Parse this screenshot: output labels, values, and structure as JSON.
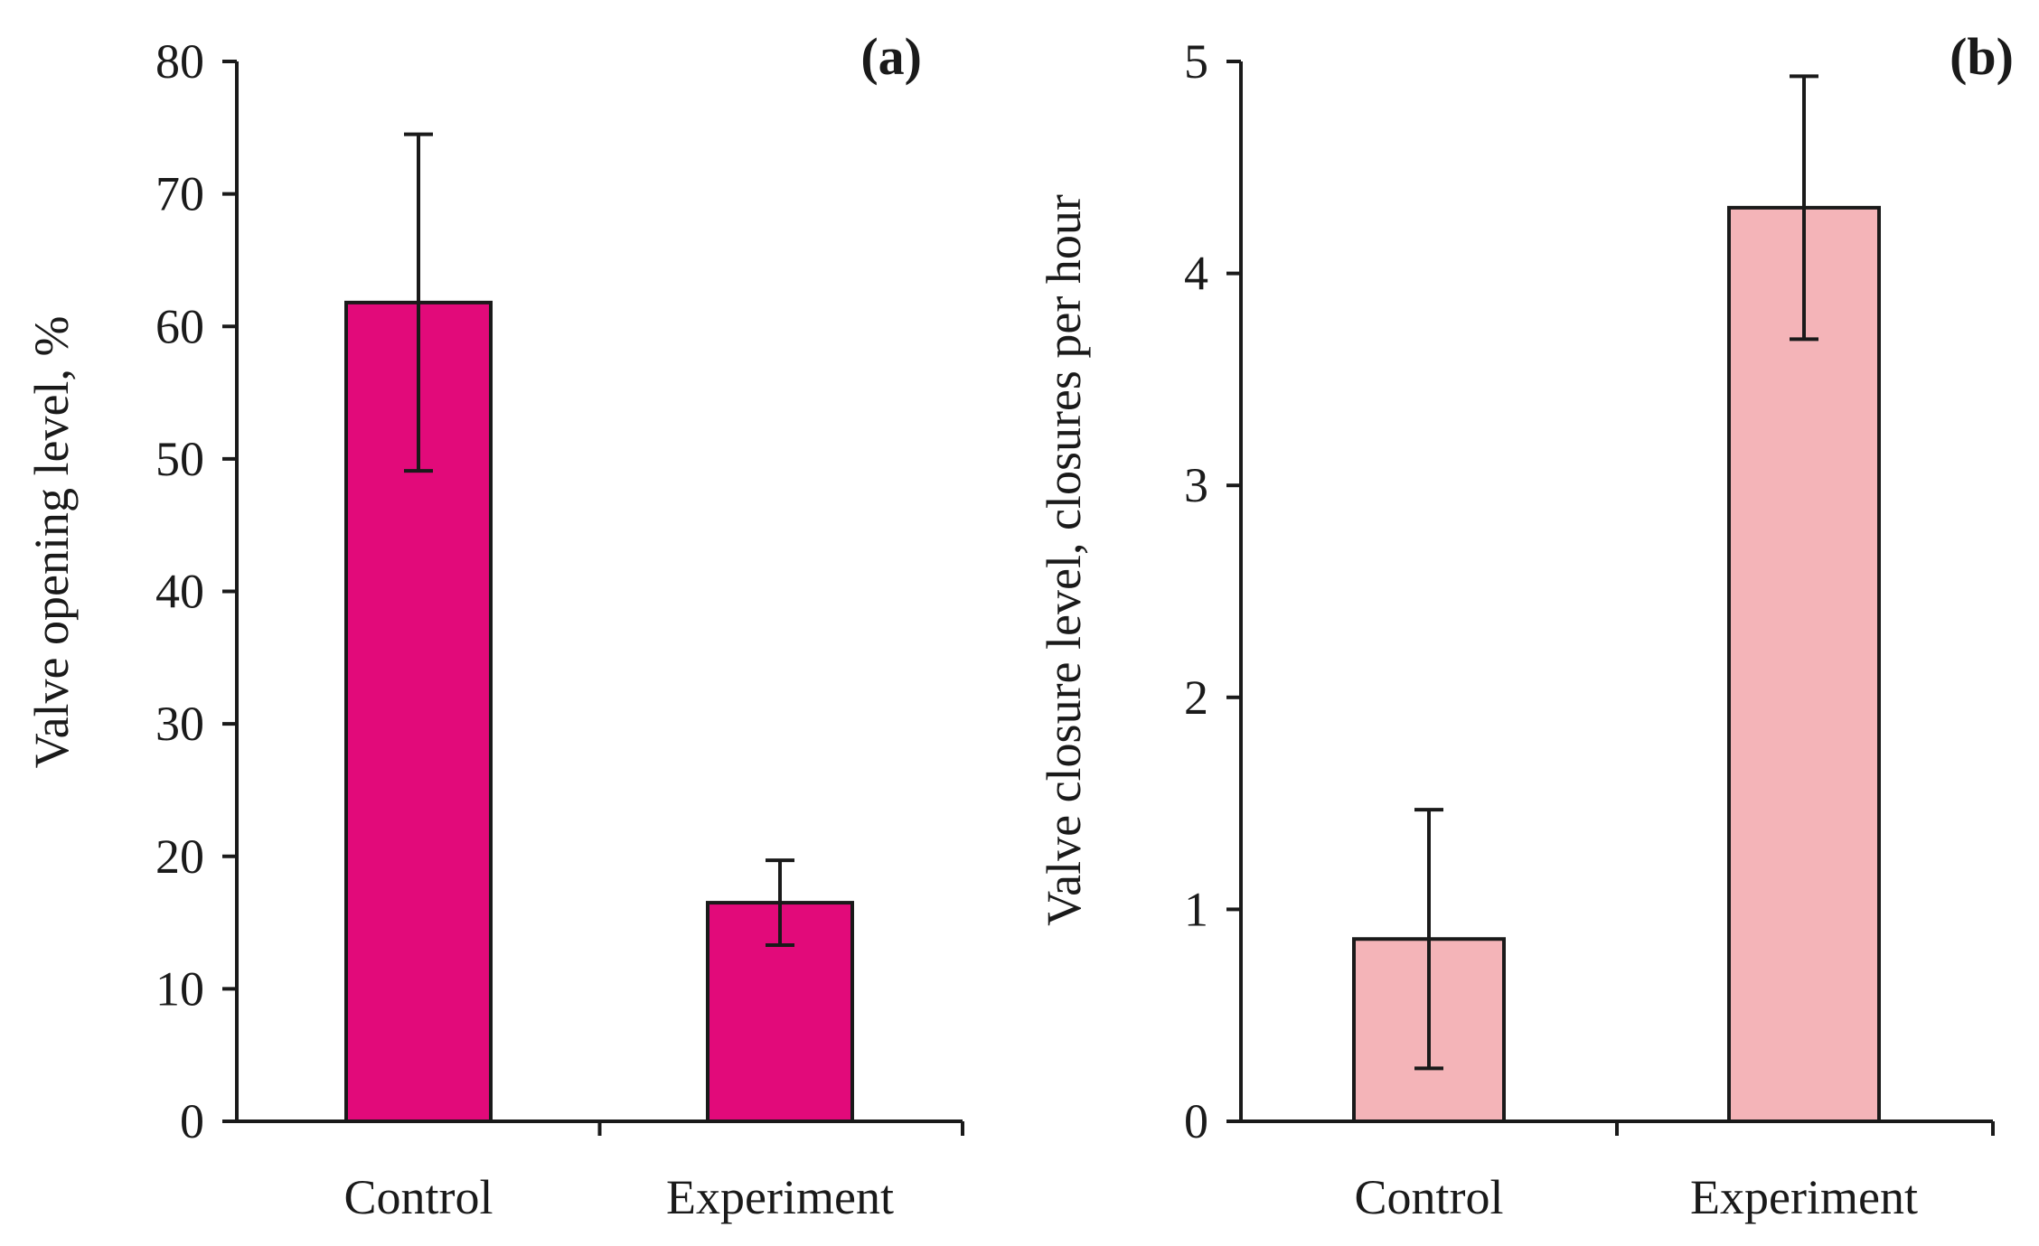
{
  "chart_data": [
    {
      "type": "bar",
      "panel_label": "(a)",
      "categories": [
        "Control",
        "Experiment"
      ],
      "values": [
        61.8,
        16.5
      ],
      "errors": [
        12.7,
        3.2
      ],
      "ylabel": "Valve opening level, %",
      "xlabel": "",
      "ylim": [
        0,
        80
      ],
      "yticks": [
        "0",
        "10",
        "20",
        "30",
        "40",
        "50",
        "60",
        "70",
        "80"
      ],
      "bar_color": "#e20a7a",
      "grid": false
    },
    {
      "type": "bar",
      "panel_label": "(b)",
      "categories": [
        "Control",
        "Experiment"
      ],
      "values": [
        0.86,
        4.31
      ],
      "errors": [
        0.61,
        0.62
      ],
      "ylabel": "Valve closure level, closures per hour",
      "xlabel": "",
      "ylim": [
        0,
        5
      ],
      "yticks": [
        "0",
        "1",
        "2",
        "3",
        "4",
        "5"
      ],
      "bar_color": "#f4b4b8",
      "grid": false
    }
  ]
}
